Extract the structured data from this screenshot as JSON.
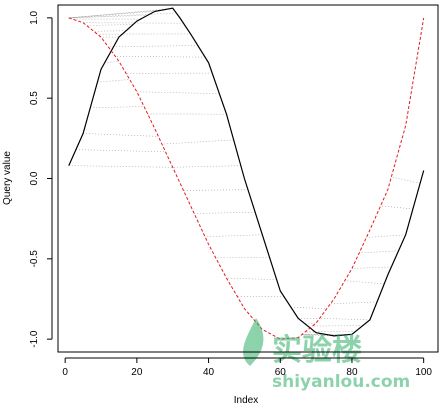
{
  "chart_data": {
    "type": "line",
    "title": "",
    "xlabel": "Index",
    "ylabel": "Query value",
    "xlim": [
      -2,
      104
    ],
    "ylim": [
      -1.08,
      1.08
    ],
    "x_ticks": [
      0,
      20,
      40,
      60,
      80,
      100
    ],
    "x_tick_labels": [
      "0",
      "20",
      "40",
      "60",
      "80",
      "100"
    ],
    "y_ticks": [
      -1.0,
      -0.5,
      0.0,
      0.5,
      1.0
    ],
    "y_tick_labels": [
      "-1.0",
      "-0.5",
      "0.0",
      "0.5",
      "1.0"
    ],
    "grid": false,
    "legend": "none",
    "series": [
      {
        "style": "solid",
        "color": "#000000",
        "x": [
          1,
          5,
          10,
          15,
          20,
          25,
          30,
          32,
          35,
          40,
          45,
          50,
          55,
          60,
          65,
          70,
          75,
          80,
          85,
          90,
          95,
          100
        ],
        "values": [
          0.08,
          0.28,
          0.68,
          0.88,
          0.98,
          1.04,
          1.06,
          1.0,
          0.9,
          0.72,
          0.4,
          0.0,
          -0.35,
          -0.7,
          -0.87,
          -0.96,
          -0.98,
          -0.97,
          -0.88,
          -0.6,
          -0.35,
          0.05
        ]
      },
      {
        "style": "dashed",
        "color": "#e41a1c",
        "x": [
          1,
          5,
          10,
          15,
          20,
          25,
          30,
          35,
          40,
          45,
          50,
          55,
          60,
          65,
          70,
          75,
          80,
          85,
          90,
          95,
          100
        ],
        "values": [
          1.0,
          0.97,
          0.88,
          0.73,
          0.54,
          0.31,
          0.07,
          -0.17,
          -0.41,
          -0.62,
          -0.81,
          -0.94,
          -1.0,
          -0.99,
          -0.9,
          -0.75,
          -0.56,
          -0.32,
          -0.07,
          0.33,
          1.0
        ]
      }
    ],
    "alignment_lines": {
      "style": "dotted",
      "color": "#9a9a9a"
    }
  },
  "watermark": {
    "text_cn": "实验楼",
    "text_url": "shiyanlou.com",
    "color": "#2fb06a"
  }
}
